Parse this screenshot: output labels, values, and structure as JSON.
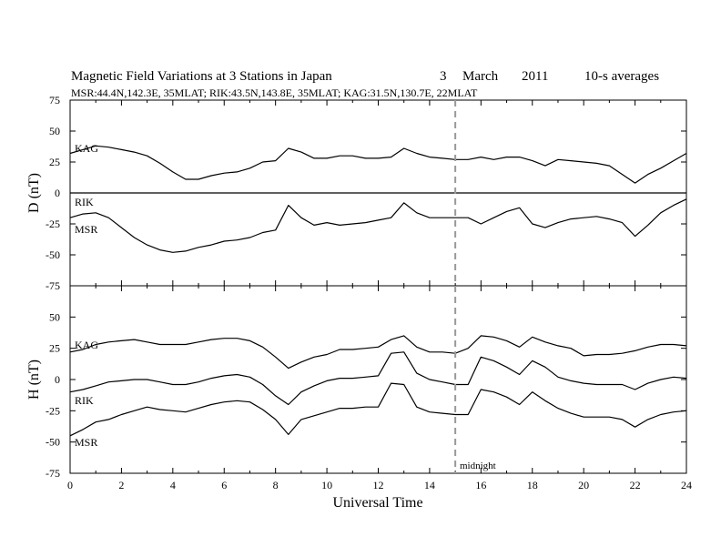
{
  "header": {
    "title": "Magnetic Field Variations at 3 Stations in Japan",
    "day": "3",
    "month": "March",
    "year": "2011",
    "averaging": "10-s averages",
    "stations_info": "MSR:44.4N,142.3E, 35MLAT;  RIK:43.5N,143.8E, 35MLAT;  KAG:31.5N,130.7E, 22MLAT"
  },
  "annotations": {
    "midnight_label": "midnight",
    "midnight_ut": 15
  },
  "colors": {
    "line": "#000000",
    "marker": "#999999"
  },
  "chart_data": [
    {
      "type": "line",
      "ylabel": "D (nT)",
      "xlabel": "",
      "xlim": [
        0,
        24
      ],
      "ylim": [
        -75,
        75
      ],
      "yticks": [
        -75,
        -50,
        -25,
        0,
        25,
        50,
        75
      ],
      "zero_line": true,
      "series": [
        {
          "name": "KAG",
          "x": [
            0,
            0.5,
            1,
            1.5,
            2,
            2.5,
            3,
            3.5,
            4,
            4.5,
            5,
            5.5,
            6,
            6.5,
            7,
            7.5,
            8,
            8.5,
            9,
            9.5,
            10,
            10.5,
            11,
            11.5,
            12,
            12.5,
            13,
            13.5,
            14,
            14.5,
            15,
            15.5,
            16,
            16.5,
            17,
            17.5,
            18,
            18.5,
            19,
            19.5,
            20,
            20.5,
            21,
            21.5,
            22,
            22.5,
            23,
            23.5,
            24
          ],
          "values": [
            32,
            35,
            38,
            37,
            35,
            33,
            30,
            24,
            17,
            11,
            11,
            14,
            16,
            17,
            20,
            25,
            26,
            36,
            33,
            28,
            28,
            30,
            30,
            28,
            28,
            29,
            36,
            32,
            29,
            28,
            27,
            27,
            29,
            27,
            29,
            29,
            26,
            22,
            27,
            26,
            25,
            24,
            22,
            15,
            8,
            15,
            20,
            26,
            32
          ]
        },
        {
          "name": "RIK",
          "x": [
            0,
            24
          ],
          "values": [
            0,
            0
          ]
        },
        {
          "name": "MSR",
          "x": [
            0,
            0.5,
            1,
            1.5,
            2,
            2.5,
            3,
            3.5,
            4,
            4.5,
            5,
            5.5,
            6,
            6.5,
            7,
            7.5,
            8,
            8.5,
            9,
            9.5,
            10,
            10.5,
            11,
            11.5,
            12,
            12.5,
            13,
            13.5,
            14,
            14.5,
            15,
            15.5,
            16,
            16.5,
            17,
            17.5,
            18,
            18.5,
            19,
            19.5,
            20,
            20.5,
            21,
            21.5,
            22,
            22.5,
            23,
            23.5,
            24
          ],
          "values": [
            -20,
            -17,
            -16,
            -20,
            -28,
            -36,
            -42,
            -46,
            -48,
            -47,
            -44,
            -42,
            -39,
            -38,
            -36,
            -32,
            -30,
            -10,
            -20,
            -26,
            -24,
            -26,
            -25,
            -24,
            -22,
            -20,
            -8,
            -16,
            -20,
            -20,
            -20,
            -20,
            -25,
            -20,
            -15,
            -12,
            -25,
            -28,
            -24,
            -21,
            -20,
            -19,
            -21,
            -24,
            -35,
            -26,
            -16,
            -10,
            -5
          ]
        }
      ]
    },
    {
      "type": "line",
      "ylabel": "H (nT)",
      "xlabel": "Universal Time",
      "xlim": [
        0,
        24
      ],
      "ylim": [
        -75,
        75
      ],
      "yticks": [
        -75,
        -50,
        -25,
        0,
        25,
        50
      ],
      "xticks": [
        0,
        2,
        4,
        6,
        8,
        10,
        12,
        14,
        16,
        18,
        20,
        22,
        24
      ],
      "series": [
        {
          "name": "KAG",
          "x": [
            0,
            0.5,
            1,
            1.5,
            2,
            2.5,
            3,
            3.5,
            4,
            4.5,
            5,
            5.5,
            6,
            6.5,
            7,
            7.5,
            8,
            8.5,
            9,
            9.5,
            10,
            10.5,
            11,
            11.5,
            12,
            12.5,
            13,
            13.5,
            14,
            14.5,
            15,
            15.5,
            16,
            16.5,
            17,
            17.5,
            18,
            18.5,
            19,
            19.5,
            20,
            20.5,
            21,
            21.5,
            22,
            22.5,
            23,
            23.5,
            24
          ],
          "values": [
            22,
            24,
            28,
            30,
            31,
            32,
            30,
            28,
            28,
            28,
            30,
            32,
            33,
            33,
            31,
            26,
            18,
            9,
            14,
            18,
            20,
            24,
            24,
            25,
            26,
            32,
            35,
            26,
            22,
            22,
            21,
            25,
            35,
            34,
            31,
            26,
            34,
            30,
            27,
            25,
            19,
            20,
            20,
            21,
            23,
            26,
            28,
            28,
            27
          ]
        },
        {
          "name": "RIK",
          "x": [
            0,
            0.5,
            1,
            1.5,
            2,
            2.5,
            3,
            3.5,
            4,
            4.5,
            5,
            5.5,
            6,
            6.5,
            7,
            7.5,
            8,
            8.5,
            9,
            9.5,
            10,
            10.5,
            11,
            11.5,
            12,
            12.5,
            13,
            13.5,
            14,
            14.5,
            15,
            15.5,
            16,
            16.5,
            17,
            17.5,
            18,
            18.5,
            19,
            19.5,
            20,
            20.5,
            21,
            21.5,
            22,
            22.5,
            23,
            23.5,
            24
          ],
          "values": [
            -10,
            -8,
            -5,
            -2,
            -1,
            0,
            0,
            -2,
            -4,
            -4,
            -2,
            1,
            3,
            4,
            2,
            -4,
            -13,
            -20,
            -10,
            -5,
            -1,
            1,
            1,
            2,
            3,
            21,
            22,
            5,
            0,
            -2,
            -4,
            -4,
            18,
            15,
            10,
            4,
            15,
            10,
            2,
            -1,
            -3,
            -4,
            -4,
            -4,
            -8,
            -3,
            0,
            2,
            1
          ]
        },
        {
          "name": "MSR",
          "x": [
            0,
            0.5,
            1,
            1.5,
            2,
            2.5,
            3,
            3.5,
            4,
            4.5,
            5,
            5.5,
            6,
            6.5,
            7,
            7.5,
            8,
            8.5,
            9,
            9.5,
            10,
            10.5,
            11,
            11.5,
            12,
            12.5,
            13,
            13.5,
            14,
            14.5,
            15,
            15.5,
            16,
            16.5,
            17,
            17.5,
            18,
            18.5,
            19,
            19.5,
            20,
            20.5,
            21,
            21.5,
            22,
            22.5,
            23,
            23.5,
            24
          ],
          "values": [
            -45,
            -40,
            -34,
            -32,
            -28,
            -25,
            -22,
            -24,
            -25,
            -26,
            -23,
            -20,
            -18,
            -17,
            -18,
            -24,
            -32,
            -44,
            -32,
            -29,
            -26,
            -23,
            -23,
            -22,
            -22,
            -3,
            -4,
            -22,
            -26,
            -27,
            -28,
            -28,
            -8,
            -10,
            -14,
            -20,
            -10,
            -17,
            -23,
            -27,
            -30,
            -30,
            -30,
            -32,
            -38,
            -32,
            -28,
            -26,
            -25
          ]
        }
      ]
    }
  ]
}
